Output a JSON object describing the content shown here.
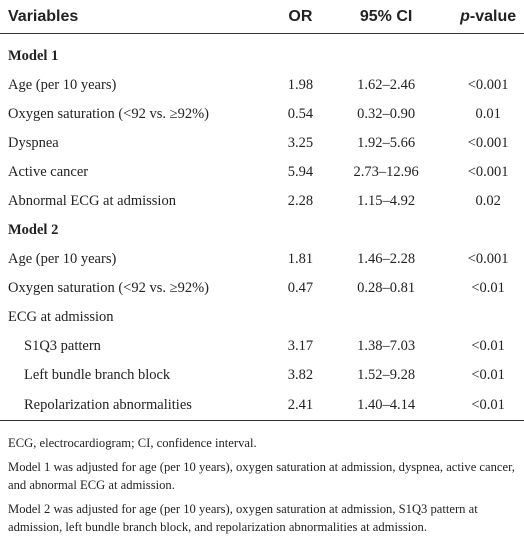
{
  "table": {
    "header": [
      "Variables",
      "OR",
      "95% CI",
      "p-value"
    ],
    "rows": [
      {
        "style": "heading",
        "cells": [
          "Model 1"
        ]
      },
      {
        "style": "item",
        "cells": [
          "Age (per 10 years)",
          "1.98",
          "1.62–2.46",
          "<0.001"
        ]
      },
      {
        "style": "item",
        "cells": [
          "Oxygen saturation (<92 vs. ≥92%)",
          "0.54",
          "0.32–0.90",
          "0.01"
        ]
      },
      {
        "style": "item",
        "cells": [
          "Dyspnea",
          "3.25",
          "1.92–5.66",
          "<0.001"
        ]
      },
      {
        "style": "item",
        "cells": [
          "Active cancer",
          "5.94",
          "2.73–12.96",
          "<0.001"
        ]
      },
      {
        "style": "item",
        "cells": [
          "Abnormal ECG at admission",
          "2.28",
          "1.15–4.92",
          "0.02"
        ]
      },
      {
        "style": "heading",
        "cells": [
          "Model 2"
        ]
      },
      {
        "style": "item",
        "cells": [
          "Age (per 10 years)",
          "1.81",
          "1.46–2.28",
          "<0.001"
        ]
      },
      {
        "style": "item",
        "cells": [
          "Oxygen saturation (<92 vs. ≥92%)",
          "0.47",
          "0.28–0.81",
          "<0.01"
        ]
      },
      {
        "style": "item",
        "cells": [
          "ECG at admission"
        ]
      },
      {
        "style": "subitem",
        "cells": [
          "S1Q3 pattern",
          "3.17",
          "1.38–7.03",
          "<0.01"
        ]
      },
      {
        "style": "subitem",
        "cells": [
          "Left bundle branch block",
          "3.82",
          "1.52–9.28",
          "<0.01"
        ]
      },
      {
        "style": "subitem",
        "cells": [
          "Repolarization abnormalities",
          "2.41",
          "1.40–4.14",
          "<0.01"
        ]
      }
    ],
    "notes": [
      "ECG, electrocardiogram; CI, confidence interval.",
      "Model 1 was adjusted for age (per 10 years), oxygen saturation at admission, dyspnea, active cancer, and abnormal ECG at admission.",
      "Model 2 was adjusted for age (per 10 years), oxygen saturation at admission, S1Q3 pattern at admission, left bundle branch block, and repolarization abnormalities at admission."
    ]
  }
}
